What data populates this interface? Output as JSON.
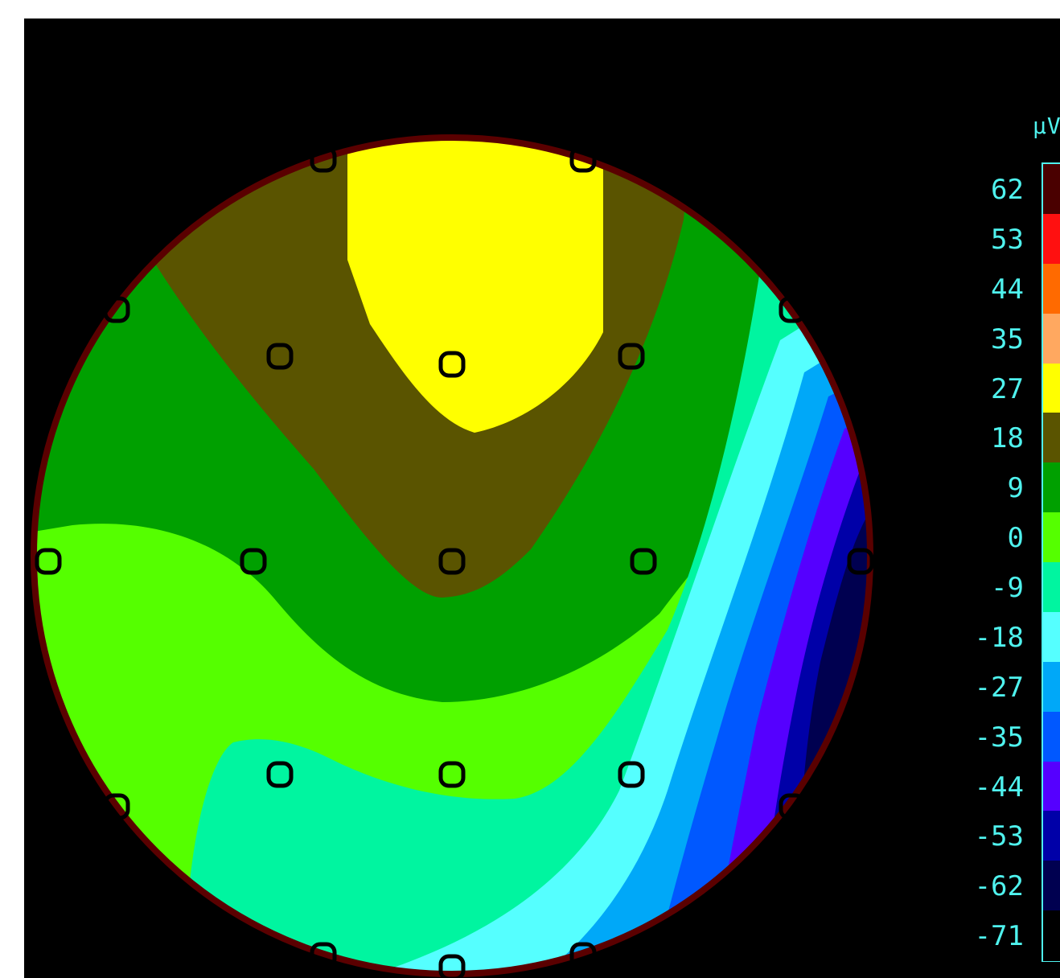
{
  "map": {
    "electrodes": 21,
    "colors": {
      "background": "#000000",
      "head_outline": "#5a0000",
      "electrode_marker": "#000000"
    }
  },
  "colorbar": {
    "unit": "µV",
    "ticks": [
      "62",
      "53",
      "44",
      "35",
      "27",
      "18",
      "9",
      "0",
      "-9",
      "-18",
      "-27",
      "-35",
      "-44",
      "-53",
      "-62",
      "-71"
    ],
    "levels": [
      {
        "color": "#4a0000"
      },
      {
        "color": "#ff1010"
      },
      {
        "color": "#ff6a00"
      },
      {
        "color": "#ffa860"
      },
      {
        "color": "#ffff00"
      },
      {
        "color": "#5a5400"
      },
      {
        "color": "#00a000"
      },
      {
        "color": "#55ff00"
      },
      {
        "color": "#00f5a0"
      },
      {
        "color": "#55ffff"
      },
      {
        "color": "#00a8f8"
      },
      {
        "color": "#0058ff"
      },
      {
        "color": "#5500ff"
      },
      {
        "color": "#0000a8"
      },
      {
        "color": "#000050"
      },
      {
        "color": "#000000"
      }
    ],
    "border_color": "#4ff2ee"
  }
}
